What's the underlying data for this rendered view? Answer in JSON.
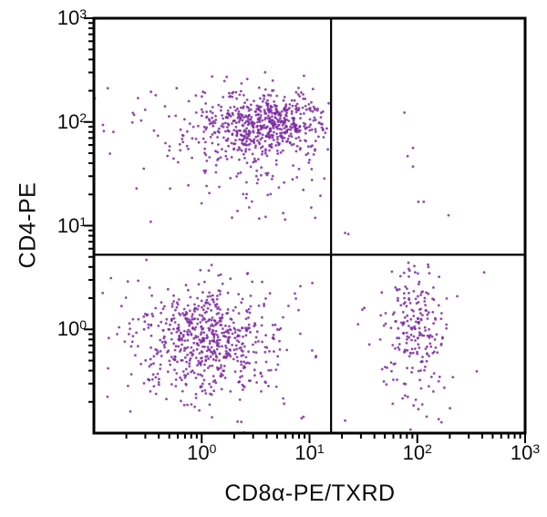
{
  "chart_data": {
    "type": "scatter",
    "subtype": "flow-cytometry-dot-plot",
    "title": "",
    "xlabel": "CD8α-PE/TXRD",
    "ylabel": "CD4-PE",
    "x_scale": "log10",
    "y_scale": "log10",
    "x_range_log10": [
      -1,
      3
    ],
    "y_range_log10": [
      -1,
      3
    ],
    "tick_base": "10",
    "x_tick_exponents": [
      0,
      1,
      2,
      3
    ],
    "y_tick_exponents": [
      3,
      2,
      1,
      0
    ],
    "minor_tick_multiples": [
      2,
      3,
      4,
      5,
      6,
      7,
      8,
      9
    ],
    "grid": false,
    "legend": false,
    "quadrant_gate": {
      "x_value": 16,
      "x_log10": 1.2,
      "y_value": 5.3,
      "y_log10": 0.72
    },
    "axis_color": "#000000",
    "dot_color": "#7e2ba1",
    "dot_opacity": 0.85,
    "dot_radius_px": 1.4,
    "seed": 42,
    "populations": [
      {
        "name": "CD4+ core (upper-left)",
        "center_log10": [
          0.62,
          1.97
        ],
        "sigma_log10": [
          0.26,
          0.14
        ],
        "count": 480,
        "clip_log10": {
          "xmax": 1.18,
          "ymin": 0.76
        }
      },
      {
        "name": "CD4+ diffuse halo (upper-left)",
        "center_log10": [
          0.33,
          1.93
        ],
        "sigma_log10": [
          0.55,
          0.24
        ],
        "count": 200,
        "clip_log10": {
          "xmax": 1.18,
          "ymin": 0.76
        }
      },
      {
        "name": "CD4+ low tail (upper-left)",
        "center_log10": [
          0.62,
          1.42
        ],
        "sigma_log10": [
          0.38,
          0.3
        ],
        "count": 48,
        "clip_log10": {
          "xmax": 1.18,
          "ymin": 0.66
        }
      },
      {
        "name": "double-negative core (lower-left)",
        "center_log10": [
          0.05,
          -0.1
        ],
        "sigma_log10": [
          0.3,
          0.25
        ],
        "count": 520,
        "clip_log10": {
          "xmax": 1.18,
          "ymax": 0.7
        }
      },
      {
        "name": "double-negative diffuse (lower-left)",
        "center_log10": [
          0.0,
          -0.12
        ],
        "sigma_log10": [
          0.55,
          0.42
        ],
        "count": 150,
        "clip_log10": {
          "xmax": 1.18,
          "ymax": 0.7
        }
      },
      {
        "name": "CD8+ core (lower-right)",
        "center_log10": [
          1.98,
          0.1
        ],
        "sigma_log10": [
          0.13,
          0.3
        ],
        "count": 185,
        "clip_log10": {
          "xmin": 1.26,
          "ymax": 0.7
        }
      },
      {
        "name": "CD8+ low tail (lower-right)",
        "center_log10": [
          1.96,
          -0.42
        ],
        "sigma_log10": [
          0.16,
          0.34
        ],
        "count": 40,
        "clip_log10": {
          "xmin": 1.26,
          "ymax": 0.7
        }
      }
    ],
    "sparse_points_log10": [
      [
        1.88,
        2.09
      ],
      [
        1.96,
        1.75
      ],
      [
        1.91,
        1.67
      ],
      [
        1.96,
        1.57
      ],
      [
        2.01,
        1.23
      ],
      [
        2.06,
        1.23
      ],
      [
        2.29,
        1.1
      ],
      [
        1.33,
        0.93
      ],
      [
        1.36,
        0.92
      ],
      [
        2.37,
        0.32
      ],
      [
        2.33,
        -0.46
      ],
      [
        1.33,
        -0.88
      ],
      [
        1.45,
        0.05
      ],
      [
        1.49,
        0.19
      ],
      [
        2.62,
        0.55
      ]
    ]
  }
}
